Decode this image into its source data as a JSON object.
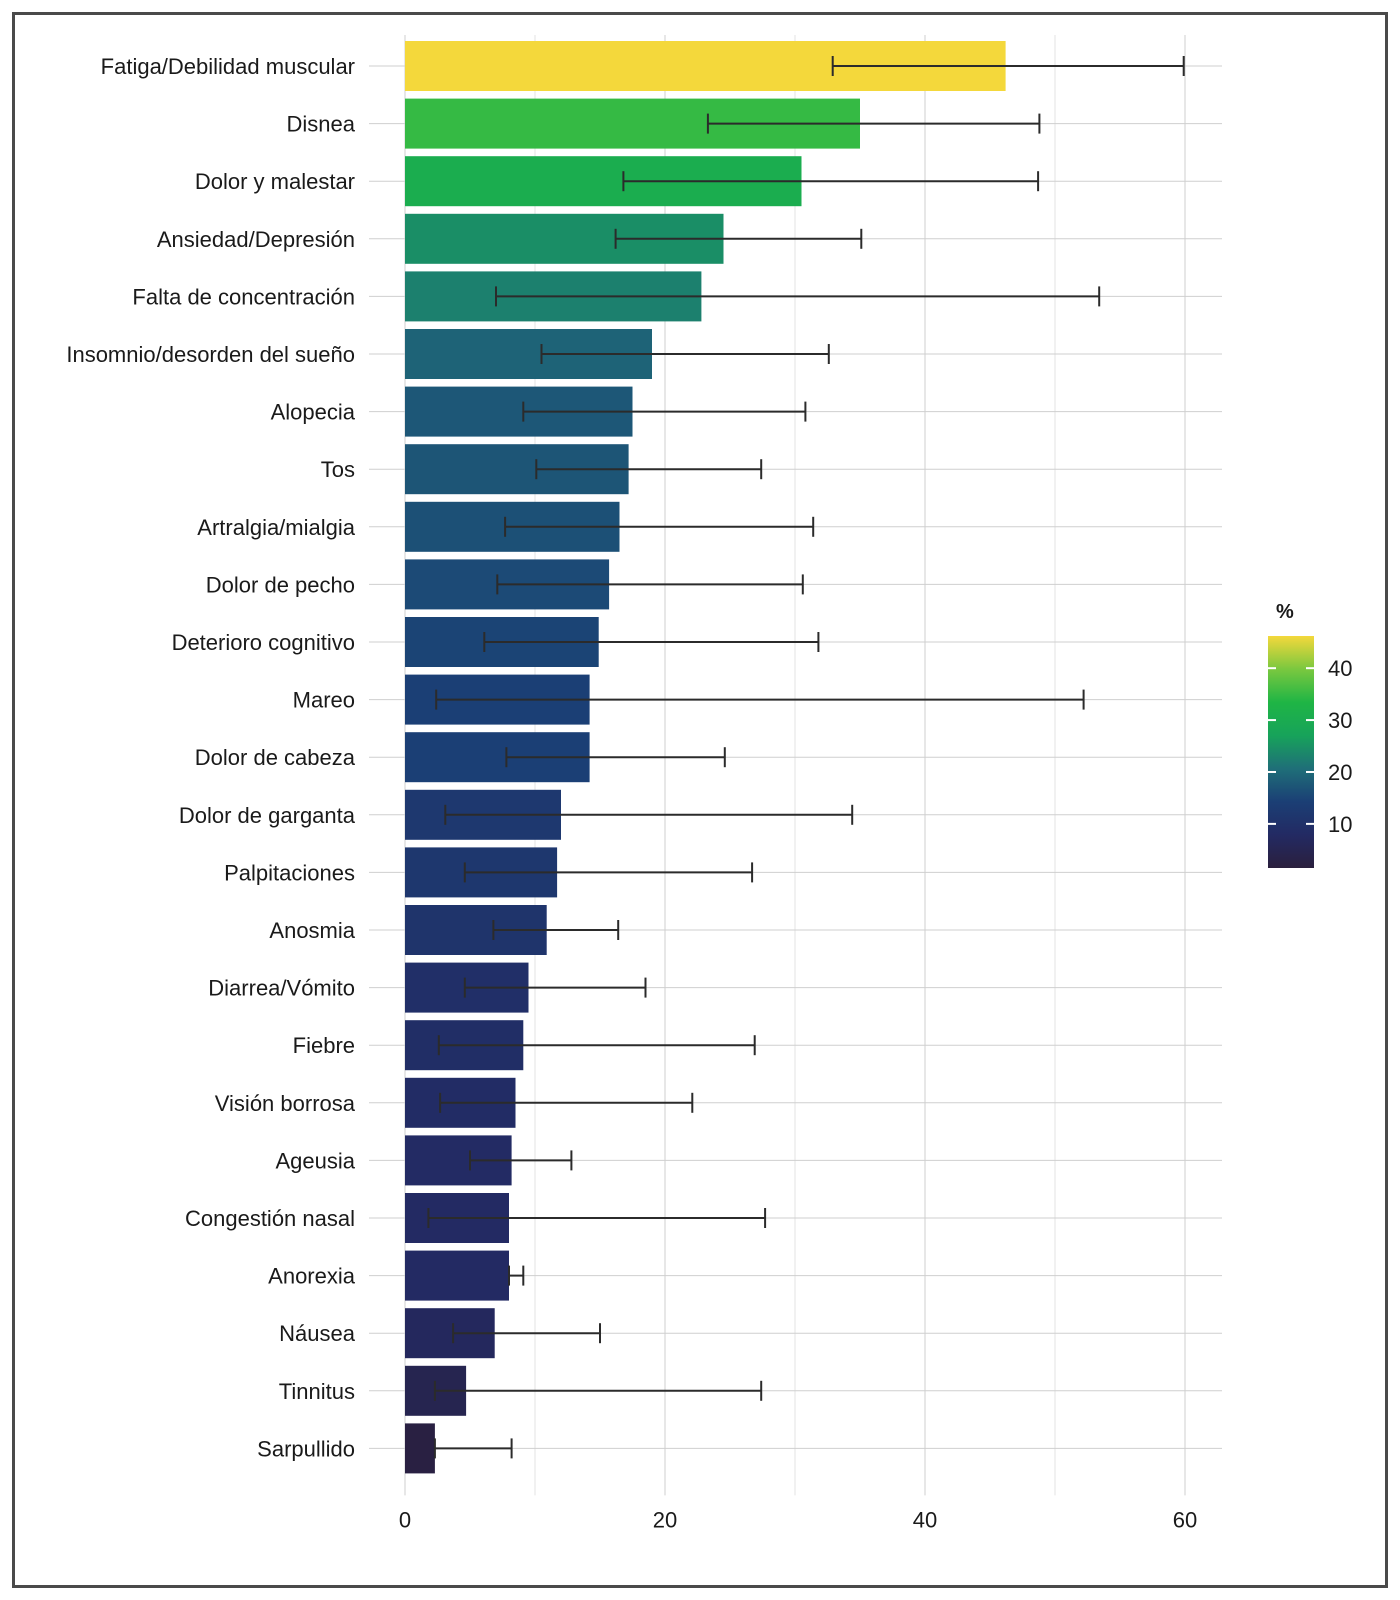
{
  "chart_data": {
    "type": "bar",
    "orientation": "horizontal",
    "categories": [
      "Fatiga/Debilidad muscular",
      "Disnea",
      "Dolor y malestar",
      "Ansiedad/Depresión",
      "Falta de concentración",
      "Insomnio/desorden del sueño",
      "Alopecia",
      "Tos",
      "Artralgia/mialgia",
      "Dolor de pecho",
      "Deterioro cognitivo",
      "Mareo",
      "Dolor de cabeza",
      "Dolor de garganta",
      "Palpitaciones",
      "Anosmia",
      "Diarrea/Vómito",
      "Fiebre",
      "Visión borrosa",
      "Ageusia",
      "Congestión nasal",
      "Anorexia",
      "Náusea",
      "Tinnitus",
      "Sarpullido"
    ],
    "values": [
      46.2,
      35.0,
      30.5,
      24.5,
      22.8,
      19.0,
      17.5,
      17.2,
      16.5,
      15.7,
      14.9,
      14.2,
      14.2,
      12.0,
      11.7,
      10.9,
      9.5,
      9.1,
      8.5,
      8.2,
      8.0,
      8.0,
      6.9,
      4.7,
      2.3
    ],
    "error_low": [
      32.9,
      23.3,
      16.8,
      16.2,
      7.0,
      10.5,
      9.1,
      10.1,
      7.7,
      7.1,
      6.1,
      2.4,
      7.8,
      3.1,
      4.6,
      6.8,
      4.6,
      2.6,
      2.7,
      5.0,
      1.8,
      8.0,
      3.7,
      2.3,
      2.3
    ],
    "error_high": [
      59.9,
      48.8,
      48.7,
      35.1,
      53.4,
      32.6,
      30.8,
      27.4,
      31.4,
      30.6,
      31.8,
      52.2,
      24.6,
      34.4,
      26.7,
      16.4,
      18.5,
      26.9,
      22.1,
      12.8,
      27.7,
      9.1,
      15.0,
      27.4,
      8.2
    ],
    "xlabel": "",
    "ylabel": "",
    "xlim": [
      0,
      63
    ],
    "xticks": [
      "0",
      "20",
      "40",
      "60"
    ],
    "grid": true,
    "legend": {
      "title": "%",
      "placement": "right",
      "type": "colorbar",
      "ticks": [
        "10",
        "20",
        "30",
        "40"
      ],
      "range": [
        1.5,
        46.2
      ],
      "colors": [
        "#2a1f3d",
        "#232a63",
        "#1b3f75",
        "#1f6f78",
        "#17a35a",
        "#1fb545",
        "#7ac83f",
        "#f4d83b"
      ]
    }
  }
}
